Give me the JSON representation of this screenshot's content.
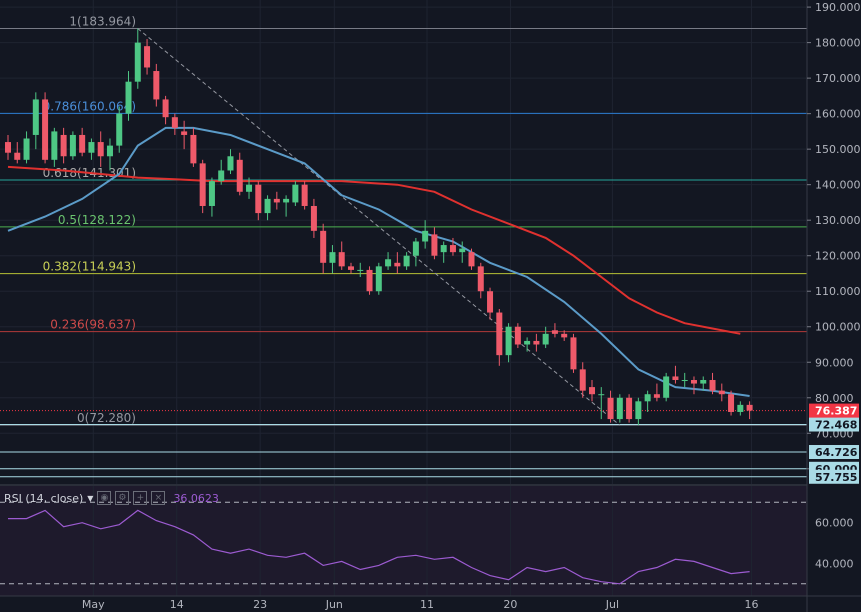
{
  "chart_data": {
    "type": "candlestick",
    "ylim": [
      56,
      192
    ],
    "y_ticks": [
      60,
      70,
      80,
      90,
      100,
      110,
      120,
      130,
      140,
      150,
      160,
      170,
      180,
      190
    ],
    "y_tick_labels": [
      "60.000",
      "70.000",
      "80.000",
      "90.000",
      "100.000",
      "110.000",
      "120.000",
      "130.000",
      "140.000",
      "150.000",
      "160.000",
      "170.000",
      "180.000",
      "190.000"
    ],
    "x_tick_labels": [
      {
        "label": "May",
        "day": 15
      },
      {
        "label": "14",
        "day": 24
      },
      {
        "label": "23",
        "day": 33
      },
      {
        "label": "Jun",
        "day": 41
      },
      {
        "label": "11",
        "day": 51
      },
      {
        "label": "20",
        "day": 60
      },
      {
        "label": "Jul",
        "day": 71
      },
      {
        "label": "16",
        "day": 86
      }
    ],
    "candles": [
      {
        "o": 152.0,
        "h": 154.0,
        "l": 147.0,
        "c": 149.0
      },
      {
        "o": 149.0,
        "h": 152.0,
        "l": 146.0,
        "c": 147.0
      },
      {
        "o": 147.0,
        "h": 155.0,
        "l": 146.0,
        "c": 153.0
      },
      {
        "o": 154.0,
        "h": 166.0,
        "l": 150.0,
        "c": 164.0
      },
      {
        "o": 164.0,
        "h": 166.0,
        "l": 146.0,
        "c": 147.0
      },
      {
        "o": 147.0,
        "h": 156.0,
        "l": 145.0,
        "c": 155.0
      },
      {
        "o": 154.0,
        "h": 156.0,
        "l": 146.0,
        "c": 148.0
      },
      {
        "o": 148.0,
        "h": 155.0,
        "l": 147.0,
        "c": 154.0
      },
      {
        "o": 154.0,
        "h": 156.0,
        "l": 148.0,
        "c": 149.0
      },
      {
        "o": 149.0,
        "h": 153.0,
        "l": 147.0,
        "c": 152.0
      },
      {
        "o": 152.0,
        "h": 155.0,
        "l": 145.0,
        "c": 148.0
      },
      {
        "o": 148.0,
        "h": 153.0,
        "l": 144.0,
        "c": 151.0
      },
      {
        "o": 151.0,
        "h": 162.0,
        "l": 149.0,
        "c": 160.0
      },
      {
        "o": 160.0,
        "h": 172.0,
        "l": 158.0,
        "c": 169.0
      },
      {
        "o": 169.0,
        "h": 183.964,
        "l": 167.0,
        "c": 180.0
      },
      {
        "o": 179.0,
        "h": 181.0,
        "l": 171.0,
        "c": 173.0
      },
      {
        "o": 172.0,
        "h": 174.0,
        "l": 162.0,
        "c": 164.0
      },
      {
        "o": 164.0,
        "h": 165.0,
        "l": 157.0,
        "c": 159.0
      },
      {
        "o": 159.0,
        "h": 160.0,
        "l": 154.0,
        "c": 156.0
      },
      {
        "o": 155.0,
        "h": 158.0,
        "l": 150.0,
        "c": 154.0
      },
      {
        "o": 154.0,
        "h": 156.0,
        "l": 145.0,
        "c": 146.0
      },
      {
        "o": 146.0,
        "h": 147.0,
        "l": 132.0,
        "c": 134.0
      },
      {
        "o": 134.0,
        "h": 142.0,
        "l": 131.0,
        "c": 141.0
      },
      {
        "o": 141.0,
        "h": 147.0,
        "l": 140.0,
        "c": 144.0
      },
      {
        "o": 144.0,
        "h": 150.0,
        "l": 143.0,
        "c": 148.0
      },
      {
        "o": 147.0,
        "h": 149.0,
        "l": 137.0,
        "c": 138.0
      },
      {
        "o": 138.0,
        "h": 142.0,
        "l": 136.0,
        "c": 140.0
      },
      {
        "o": 140.0,
        "h": 141.0,
        "l": 130.0,
        "c": 132.0
      },
      {
        "o": 132.0,
        "h": 137.0,
        "l": 130.0,
        "c": 136.0
      },
      {
        "o": 136.0,
        "h": 138.0,
        "l": 133.0,
        "c": 135.0
      },
      {
        "o": 135.0,
        "h": 137.0,
        "l": 131.0,
        "c": 136.0
      },
      {
        "o": 135.0,
        "h": 141.0,
        "l": 134.0,
        "c": 140.0
      },
      {
        "o": 140.0,
        "h": 141.0,
        "l": 133.0,
        "c": 134.0
      },
      {
        "o": 134.0,
        "h": 136.0,
        "l": 125.0,
        "c": 127.0
      },
      {
        "o": 127.0,
        "h": 129.0,
        "l": 115.0,
        "c": 118.0
      },
      {
        "o": 118.0,
        "h": 123.0,
        "l": 115.0,
        "c": 121.0
      },
      {
        "o": 121.0,
        "h": 124.0,
        "l": 116.0,
        "c": 117.0
      },
      {
        "o": 117.0,
        "h": 118.0,
        "l": 115.0,
        "c": 116.0
      },
      {
        "o": 116.0,
        "h": 118.0,
        "l": 114.0,
        "c": 116.0
      },
      {
        "o": 116.0,
        "h": 117.0,
        "l": 109.0,
        "c": 110.0
      },
      {
        "o": 110.0,
        "h": 118.0,
        "l": 109.0,
        "c": 117.0
      },
      {
        "o": 117.0,
        "h": 121.0,
        "l": 116.0,
        "c": 119.0
      },
      {
        "o": 118.0,
        "h": 121.0,
        "l": 115.0,
        "c": 117.0
      },
      {
        "o": 117.0,
        "h": 121.0,
        "l": 116.0,
        "c": 120.0
      },
      {
        "o": 120.0,
        "h": 125.0,
        "l": 117.0,
        "c": 124.0
      },
      {
        "o": 124.0,
        "h": 130.0,
        "l": 122.0,
        "c": 127.0
      },
      {
        "o": 126.0,
        "h": 128.0,
        "l": 119.0,
        "c": 120.0
      },
      {
        "o": 121.0,
        "h": 124.0,
        "l": 118.0,
        "c": 123.0
      },
      {
        "o": 123.0,
        "h": 125.0,
        "l": 120.0,
        "c": 121.0
      },
      {
        "o": 121.0,
        "h": 124.0,
        "l": 118.0,
        "c": 122.0
      },
      {
        "o": 121.0,
        "h": 122.0,
        "l": 116.0,
        "c": 117.0
      },
      {
        "o": 117.0,
        "h": 118.0,
        "l": 108.0,
        "c": 110.0
      },
      {
        "o": 110.0,
        "h": 111.0,
        "l": 102.0,
        "c": 104.0
      },
      {
        "o": 104.0,
        "h": 105.0,
        "l": 89.0,
        "c": 92.0
      },
      {
        "o": 92.0,
        "h": 101.0,
        "l": 90.0,
        "c": 100.0
      },
      {
        "o": 100.0,
        "h": 101.0,
        "l": 94.0,
        "c": 95.0
      },
      {
        "o": 95.0,
        "h": 97.0,
        "l": 93.0,
        "c": 96.0
      },
      {
        "o": 96.0,
        "h": 98.0,
        "l": 93.0,
        "c": 95.0
      },
      {
        "o": 95.0,
        "h": 100.0,
        "l": 94.0,
        "c": 98.0
      },
      {
        "o": 99.0,
        "h": 101.0,
        "l": 97.0,
        "c": 98.0
      },
      {
        "o": 98.0,
        "h": 99.0,
        "l": 96.0,
        "c": 97.0
      },
      {
        "o": 97.0,
        "h": 98.0,
        "l": 87.0,
        "c": 88.0
      },
      {
        "o": 88.0,
        "h": 90.0,
        "l": 80.0,
        "c": 82.0
      },
      {
        "o": 83.0,
        "h": 85.0,
        "l": 79.0,
        "c": 81.0
      },
      {
        "o": 81.0,
        "h": 83.0,
        "l": 74.0,
        "c": 81.0
      },
      {
        "o": 80.0,
        "h": 82.0,
        "l": 73.0,
        "c": 74.0
      },
      {
        "o": 74.0,
        "h": 81.0,
        "l": 73.0,
        "c": 80.0
      },
      {
        "o": 80.0,
        "h": 81.0,
        "l": 73.0,
        "c": 74.0
      },
      {
        "o": 74.0,
        "h": 80.0,
        "l": 72.28,
        "c": 79.0
      },
      {
        "o": 79.0,
        "h": 82.0,
        "l": 76.0,
        "c": 81.0
      },
      {
        "o": 81.0,
        "h": 84.0,
        "l": 79.0,
        "c": 80.0
      },
      {
        "o": 80.0,
        "h": 87.0,
        "l": 79.0,
        "c": 86.0
      },
      {
        "o": 86.0,
        "h": 89.0,
        "l": 84.0,
        "c": 85.0
      },
      {
        "o": 85.0,
        "h": 87.0,
        "l": 83.0,
        "c": 85.0
      },
      {
        "o": 85.0,
        "h": 86.0,
        "l": 81.0,
        "c": 84.0
      },
      {
        "o": 84.0,
        "h": 86.0,
        "l": 82.0,
        "c": 85.0
      },
      {
        "o": 85.0,
        "h": 87.0,
        "l": 81.0,
        "c": 82.0
      },
      {
        "o": 82.0,
        "h": 84.0,
        "l": 79.0,
        "c": 81.0
      },
      {
        "o": 81.0,
        "h": 82.0,
        "l": 75.0,
        "c": 76.0
      },
      {
        "o": 76.0,
        "h": 79.0,
        "l": 75.0,
        "c": 78.0
      },
      {
        "o": 78.0,
        "h": 79.0,
        "l": 74.0,
        "c": 76.387
      }
    ],
    "sma_blue": [
      [
        0,
        127
      ],
      [
        4,
        131
      ],
      [
        8,
        136
      ],
      [
        12,
        143
      ],
      [
        14,
        151
      ],
      [
        17,
        156
      ],
      [
        20,
        156
      ],
      [
        24,
        154
      ],
      [
        28,
        150
      ],
      [
        32,
        146
      ],
      [
        36,
        137
      ],
      [
        40,
        133
      ],
      [
        44,
        127
      ],
      [
        48,
        124
      ],
      [
        52,
        118
      ],
      [
        56,
        114
      ],
      [
        60,
        107
      ],
      [
        64,
        98
      ],
      [
        68,
        88
      ],
      [
        72,
        83
      ],
      [
        76,
        82
      ],
      [
        80,
        80.5
      ]
    ],
    "sma_red": [
      [
        0,
        145
      ],
      [
        6,
        144
      ],
      [
        10,
        143
      ],
      [
        14,
        142
      ],
      [
        18,
        141.5
      ],
      [
        22,
        141
      ],
      [
        26,
        141
      ],
      [
        30,
        141
      ],
      [
        36,
        141
      ],
      [
        42,
        140
      ],
      [
        46,
        138
      ],
      [
        50,
        133
      ],
      [
        54,
        129
      ],
      [
        58,
        125
      ],
      [
        61,
        120
      ],
      [
        64,
        114
      ],
      [
        67,
        108
      ],
      [
        70,
        104
      ],
      [
        73,
        101
      ],
      [
        76,
        99.5
      ],
      [
        79,
        98
      ]
    ],
    "trendline": {
      "from": [
        14,
        183.964
      ],
      "to": [
        66,
        72.28
      ]
    },
    "fib_levels": [
      {
        "ratio": "1",
        "value": 183.964,
        "label": "1(183.964)",
        "color": "#787b86",
        "label_color": "#9598a1"
      },
      {
        "ratio": "0.786",
        "value": 160.064,
        "label": "0.786(160.064)",
        "color": "#2b7bd1",
        "label_color": "#4a8ed8"
      },
      {
        "ratio": "0.618",
        "value": 141.301,
        "label": "0.618(141.301)",
        "color": "#26a69a",
        "label_color": "#a8a8a8"
      },
      {
        "ratio": "0.5",
        "value": 128.122,
        "label": "0.5(128.122)",
        "color": "#4caf50",
        "label_color": "#6ac36e"
      },
      {
        "ratio": "0.382",
        "value": 114.943,
        "label": "0.382(114.943)",
        "color": "#b7c234",
        "label_color": "#c7cf56"
      },
      {
        "ratio": "0.236",
        "value": 98.637,
        "label": "0.236(98.637)",
        "color": "#b23a3a",
        "label_color": "#d04a4a"
      },
      {
        "ratio": "0",
        "value": 72.28,
        "label": "0(72.280)",
        "color": "#787b86",
        "label_color": "#9598a1"
      }
    ],
    "horizontal_levels": [
      {
        "value": 72.468,
        "label": "72.468",
        "color": "#a9dbe6"
      },
      {
        "value": 64.726,
        "label": "64.726",
        "color": "#a9dbe6"
      },
      {
        "value": 60.0,
        "label": "60.000",
        "color": "#a9dbe6"
      },
      {
        "value": 57.755,
        "label": "57.755",
        "color": "#a9dbe6"
      }
    ],
    "last_price": {
      "value": 76.387,
      "label": "76.387",
      "color": "#f23645"
    },
    "rsi": {
      "label": "RSI (14, close)",
      "value_label": "36.0623",
      "ylim": [
        24,
        78
      ],
      "y_ticks": [
        40,
        60
      ],
      "y_tick_labels": [
        "40.000",
        "60.000"
      ],
      "bands": [
        30,
        70
      ],
      "values": [
        [
          0,
          62
        ],
        [
          2,
          62
        ],
        [
          4,
          66
        ],
        [
          6,
          58
        ],
        [
          8,
          60
        ],
        [
          10,
          57
        ],
        [
          12,
          59
        ],
        [
          14,
          66
        ],
        [
          16,
          61
        ],
        [
          18,
          58
        ],
        [
          20,
          54
        ],
        [
          22,
          47
        ],
        [
          24,
          45
        ],
        [
          26,
          47
        ],
        [
          28,
          44
        ],
        [
          30,
          43
        ],
        [
          32,
          45
        ],
        [
          34,
          39
        ],
        [
          36,
          41
        ],
        [
          38,
          37
        ],
        [
          40,
          39
        ],
        [
          42,
          43
        ],
        [
          44,
          44
        ],
        [
          46,
          42
        ],
        [
          48,
          43
        ],
        [
          50,
          38
        ],
        [
          52,
          34
        ],
        [
          54,
          32
        ],
        [
          56,
          38
        ],
        [
          58,
          36
        ],
        [
          60,
          38
        ],
        [
          62,
          33
        ],
        [
          64,
          31
        ],
        [
          66,
          30
        ],
        [
          68,
          36
        ],
        [
          70,
          38
        ],
        [
          72,
          42
        ],
        [
          74,
          41
        ],
        [
          76,
          38
        ],
        [
          78,
          35
        ],
        [
          80,
          36
        ]
      ]
    }
  }
}
